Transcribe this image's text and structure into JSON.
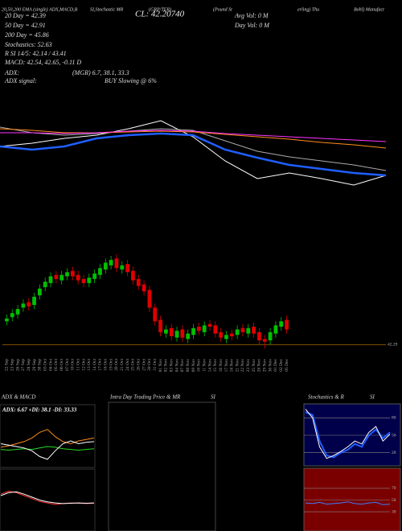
{
  "header": {
    "line1": "20,50,200 EMA (single) ADX,MACD,B",
    "line1b": "SI,Stochastic MR",
    "line1c": "(GRP/TER)",
    "line1d": "(Pound St",
    "line1e": "erling) Thu",
    "line1f": "Bohl) Manufact",
    "close": "CL: 42.20740",
    "avgvol": "Avg Vol: 0  M",
    "dayvol": "Day Vol: 0  M",
    "ema20": "20 Day = 42.39",
    "ema50": "50  Day = 42.91",
    "ema200": "200  Day = 45.86",
    "stoch": "Stochastics: 52.63",
    "rsi": "R            SI 14/5: 42.14  / 43.41",
    "macd": "MACD: 42.54, 42.65, -0.11 D",
    "adx": "ADX:",
    "adxv": "(MGR) 6.7,  38.1,  33.3",
    "adxsig": "ADX  signal:",
    "adxsigv": "BUY Slowing @ 6%",
    "intraday": "Intra  Day Trading Price  & MR",
    "intraday2": "SI"
  },
  "chart_data": [
    {
      "type": "line",
      "ylim": [
        40,
        50
      ],
      "series": [
        {
          "color": "#ffffff",
          "values": [
            45.8,
            46.2,
            46.8,
            47.2,
            48.0,
            49.0,
            47.0,
            44.0,
            41.8,
            42.5,
            41.8,
            41.0,
            42.2
          ]
        },
        {
          "color": "#aaaaaa",
          "values": [
            48.2,
            47.5,
            47.2,
            47.4,
            47.7,
            48.0,
            47.8,
            46.5,
            45.2,
            44.5,
            44.0,
            43.5,
            42.8
          ]
        },
        {
          "color": "#ff8c1a",
          "values": [
            48.0,
            47.8,
            47.5,
            47.5,
            47.6,
            47.7,
            47.6,
            47.3,
            47.0,
            46.7,
            46.3,
            46.0,
            45.6
          ]
        },
        {
          "color": "#ff33ff",
          "values": [
            47.5,
            47.5,
            47.4,
            47.5,
            47.7,
            47.8,
            47.7,
            47.4,
            47.2,
            47.0,
            46.8,
            46.6,
            46.4
          ]
        },
        {
          "color": "#1f5fff",
          "values": [
            45.8,
            45.4,
            45.8,
            46.8,
            47.2,
            47.4,
            47.2,
            45.4,
            44.4,
            43.5,
            43.0,
            42.5,
            42.2
          ]
        }
      ]
    },
    {
      "type": "candlestick",
      "ylim": [
        41.6,
        48.8
      ],
      "yticks": [
        42.29
      ],
      "up_color": "#00c000",
      "down_color": "#e00000",
      "categories": [
        "22 Sep",
        "23 Sep",
        "26 Sep",
        "27 Sep",
        "28 Sep",
        "29 Sep",
        "30 Sep",
        "03 Oct",
        "04 Oct",
        "05 Oct",
        "06 Oct",
        "07 Oct",
        "10 Oct",
        "11 Oct",
        "12 Oct",
        "13 Oct",
        "14 Oct",
        "17 Oct",
        "18 Oct",
        "19 Oct",
        "20 Oct",
        "21 Oct",
        "24 Oct",
        "25 Oct",
        "26 Oct",
        "27 Oct",
        "28 Oct",
        "31 Oct",
        "01 Nov",
        "02 Nov",
        "03 Nov",
        "04 Nov",
        "07 Nov",
        "08 Nov",
        "09 Nov",
        "10 Nov",
        "11 Nov",
        "14 Nov",
        "15 Nov",
        "16 Nov",
        "17 Nov",
        "18 Nov",
        "21 Nov",
        "22 Nov",
        "23 Nov",
        "25 Nov",
        "28 Nov",
        "29 Nov",
        "30 Nov",
        "01 Dec",
        "02 Dec",
        "05 Dec"
      ],
      "open": [
        44.0,
        44.3,
        44.5,
        45.0,
        45.4,
        45.2,
        45.9,
        46.5,
        46.8,
        47.4,
        47.0,
        47.3,
        47.7,
        47.4,
        47.1,
        46.8,
        47.1,
        47.4,
        47.8,
        48.1,
        48.6,
        47.8,
        48.2,
        47.7,
        47.1,
        46.7,
        46.3,
        45.0,
        44.1,
        43.1,
        43.5,
        42.8,
        43.4,
        42.7,
        43.0,
        43.6,
        43.2,
        43.8,
        43.7,
        43.2,
        42.7,
        43.1,
        43.0,
        43.5,
        43.1,
        43.6,
        43.2,
        42.7,
        42.6,
        43.1,
        43.6,
        44.1
      ],
      "high": [
        44.5,
        44.9,
        45.2,
        45.6,
        45.7,
        46.1,
        46.7,
        47.2,
        47.6,
        47.7,
        47.7,
        47.9,
        48.0,
        47.7,
        47.4,
        47.5,
        47.8,
        48.2,
        48.6,
        48.8,
        48.9,
        48.4,
        48.5,
        48.0,
        47.4,
        47.0,
        46.6,
        45.3,
        44.4,
        43.7,
        43.8,
        43.6,
        43.7,
        43.4,
        43.8,
        43.9,
        44.0,
        44.1,
        44.0,
        43.5,
        43.3,
        43.4,
        43.7,
        43.8,
        43.8,
        43.9,
        43.5,
        43.0,
        43.5,
        44.0,
        44.3,
        44.4
      ],
      "low": [
        43.7,
        44.0,
        44.2,
        44.7,
        44.8,
        44.9,
        45.6,
        46.2,
        46.5,
        46.8,
        46.7,
        47.0,
        47.0,
        46.7,
        46.5,
        46.5,
        46.8,
        47.1,
        47.5,
        47.8,
        47.6,
        47.5,
        47.3,
        46.7,
        46.3,
        45.9,
        44.7,
        43.7,
        42.9,
        42.8,
        42.6,
        42.5,
        42.5,
        42.4,
        42.7,
        43.0,
        42.9,
        43.3,
        42.8,
        42.5,
        42.4,
        42.6,
        42.7,
        42.9,
        42.8,
        42.8,
        42.3,
        42.0,
        42.3,
        42.8,
        43.3,
        43.1
      ],
      "close": [
        44.2,
        44.6,
        44.9,
        45.3,
        45.1,
        45.8,
        46.4,
        46.9,
        47.3,
        47.1,
        47.4,
        47.6,
        47.3,
        47.0,
        46.8,
        47.2,
        47.5,
        47.9,
        48.3,
        48.5,
        47.9,
        48.1,
        47.6,
        47.0,
        46.6,
        46.2,
        45.0,
        44.0,
        43.2,
        43.4,
        42.9,
        43.3,
        42.8,
        43.1,
        43.5,
        43.3,
        43.7,
        43.6,
        43.1,
        42.8,
        43.0,
        42.9,
        43.4,
        43.2,
        43.5,
        43.1,
        42.6,
        42.5,
        43.2,
        43.7,
        44.0,
        43.4
      ]
    },
    {
      "type": "line",
      "title": "ADX  & MACD",
      "subtitle": "ADX: 6.67 +DI: 38.1 -DI: 33.33",
      "ylim": [
        0,
        60
      ],
      "series": [
        {
          "color": "#22dd22",
          "values": [
            22,
            21,
            22,
            23,
            22,
            24,
            26,
            25,
            23,
            22,
            21,
            22,
            23
          ]
        },
        {
          "color": "#ff8c1a",
          "values": [
            25,
            27,
            30,
            33,
            38,
            46,
            50,
            40,
            33,
            30,
            34,
            36,
            38
          ]
        },
        {
          "color": "#ffffff",
          "values": [
            30,
            28,
            26,
            24,
            20,
            12,
            8,
            20,
            30,
            34,
            30,
            32,
            33
          ]
        }
      ]
    },
    {
      "type": "line",
      "ylim": [
        -1,
        1
      ],
      "series": [
        {
          "color": "#ff3333",
          "values": [
            0.2,
            0.3,
            0.25,
            0.15,
            0.05,
            -0.05,
            -0.1,
            -0.15,
            -0.12,
            -0.1,
            -0.11,
            -0.12,
            -0.11
          ]
        },
        {
          "color": "#ffffff",
          "values": [
            0.15,
            0.25,
            0.28,
            0.2,
            0.1,
            0.0,
            -0.06,
            -0.1,
            -0.12,
            -0.11,
            -0.1,
            -0.11,
            -0.1
          ]
        }
      ]
    },
    {
      "type": "line",
      "title": "Stochastics & R",
      "title2": "SI",
      "ylim": [
        0,
        100
      ],
      "yticks": [
        20,
        50,
        80
      ],
      "background": "#00004a",
      "series": [
        {
          "color": "#1f5fff",
          "values": [
            90,
            85,
            40,
            15,
            12,
            20,
            25,
            35,
            30,
            50,
            60,
            45,
            55
          ]
        },
        {
          "color": "#ffffff",
          "values": [
            95,
            80,
            30,
            10,
            15,
            22,
            30,
            40,
            35,
            55,
            65,
            40,
            52
          ]
        }
      ]
    },
    {
      "type": "line",
      "ylim": [
        0,
        100
      ],
      "yticks": [
        30,
        50,
        70
      ],
      "background": "#7a0000",
      "series": [
        {
          "color": "#3f7fff",
          "values": [
            45,
            44,
            46,
            43,
            44,
            45,
            47,
            44,
            43,
            45,
            46,
            42,
            43
          ]
        }
      ]
    }
  ]
}
